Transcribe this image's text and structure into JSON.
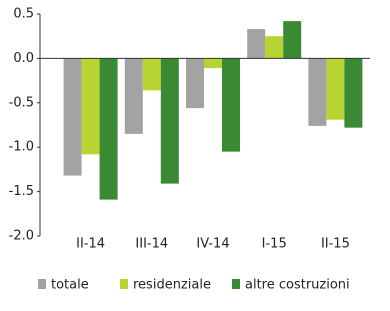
{
  "chart_data": {
    "type": "bar",
    "categories": [
      "II-14",
      "III-14",
      "IV-14",
      "I-15",
      "II-15"
    ],
    "series": [
      {
        "name": "totale",
        "color": "#a3a3a3",
        "values": [
          -1.32,
          -0.85,
          -0.56,
          0.33,
          -0.76
        ]
      },
      {
        "name": "residenziale",
        "color": "#b8d433",
        "values": [
          -1.08,
          -0.36,
          -0.11,
          0.25,
          -0.69
        ]
      },
      {
        "name": "altre costruzioni",
        "color": "#3a8a34",
        "values": [
          -1.59,
          -1.41,
          -1.05,
          0.42,
          -0.78
        ]
      }
    ],
    "ylim": [
      -2.0,
      0.5
    ],
    "yticks": [
      0.5,
      {
        "value": 0.0,
        "label": "0.0"
      },
      -0.5,
      {
        "value": -1.0,
        "label": "-1.0"
      },
      -1.5,
      {
        "value": -2.0,
        "label": "-2.0"
      }
    ],
    "legend": "bottom"
  }
}
